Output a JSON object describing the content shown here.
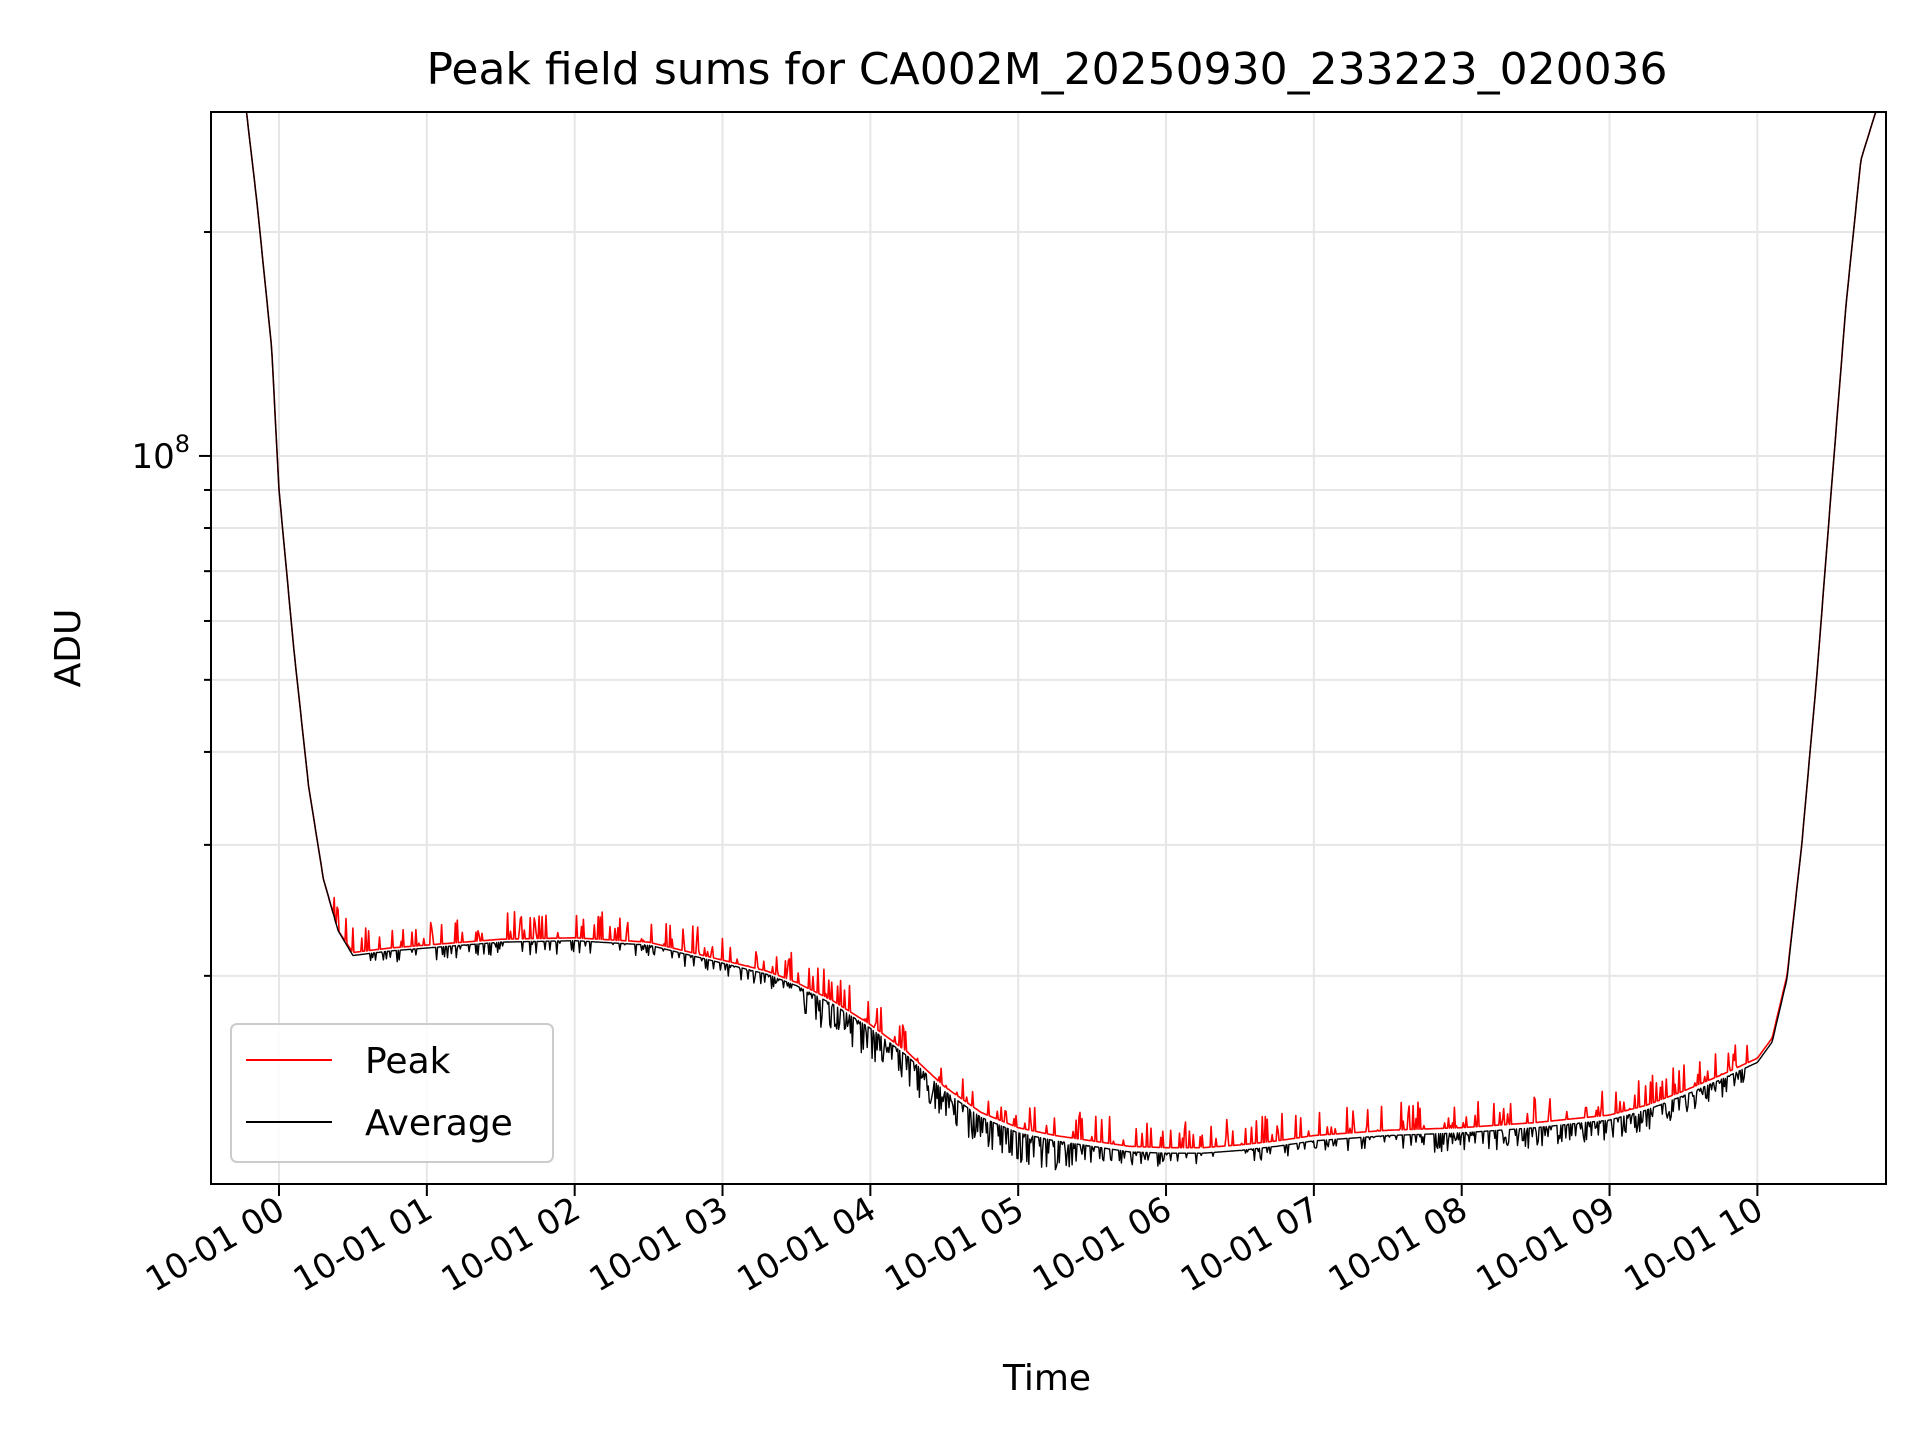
{
  "chart_data": {
    "type": "line",
    "title": "Peak field sums for CA002M_20250930_233223_020036",
    "xlabel": "Time",
    "ylabel": "ADU",
    "y_scale": "log",
    "ylim": [
      10500000,
      290000000
    ],
    "xlim_hours": [
      -0.46,
      10.87
    ],
    "x_tick_hours": [
      0,
      1,
      2,
      3,
      4,
      5,
      6,
      7,
      8,
      9,
      10
    ],
    "x_tick_labels": [
      "10-01 00",
      "10-01 01",
      "10-01 02",
      "10-01 03",
      "10-01 04",
      "10-01 05",
      "10-01 06",
      "10-01 07",
      "10-01 08",
      "10-01 09",
      "10-01 10"
    ],
    "y_tick_major": [
      100000000
    ],
    "y_tick_major_base": "10",
    "y_tick_major_exp": "8",
    "y_tick_minor": [
      20000000,
      30000000,
      40000000,
      50000000,
      60000000,
      70000000,
      80000000,
      90000000,
      200000000
    ],
    "grid": true,
    "legend_position": "lower-left",
    "colors": {
      "peak": "#ff0000",
      "average": "#000000",
      "grid": "#e6e6e6"
    },
    "series": [
      {
        "name": "Peak",
        "color": "#ff0000",
        "hours": [
          -0.46,
          -0.22,
          -0.15,
          -0.05,
          0.0,
          0.1,
          0.2,
          0.3,
          0.4,
          0.5,
          0.75,
          1.0,
          1.5,
          2.0,
          2.5,
          3.0,
          3.3,
          3.5,
          3.75,
          4.0,
          4.25,
          4.5,
          4.75,
          5.0,
          5.25,
          5.5,
          5.75,
          6.0,
          6.25,
          6.5,
          6.75,
          7.0,
          7.5,
          8.0,
          8.5,
          9.0,
          9.25,
          9.5,
          9.75,
          10.0,
          10.1,
          10.2,
          10.3,
          10.4,
          10.5,
          10.6,
          10.7,
          10.8,
          10.87
        ],
        "values": [
          290000000,
          290000000,
          220000000,
          140000000,
          90000000,
          55000000,
          36000000,
          27000000,
          23000000,
          21500000,
          21800000,
          22000000,
          22400000,
          22500000,
          22200000,
          21000000,
          20300000,
          19600000,
          18500000,
          17200000,
          15800000,
          14200000,
          13100000,
          12500000,
          12200000,
          12000000,
          11800000,
          11750000,
          11750000,
          11850000,
          12000000,
          12200000,
          12400000,
          12500000,
          12700000,
          13000000,
          13400000,
          14000000,
          14700000,
          15500000,
          16500000,
          20000000,
          30000000,
          50000000,
          90000000,
          160000000,
          250000000,
          290000000,
          290000000
        ]
      },
      {
        "name": "Average",
        "color": "#000000",
        "hours": [
          -0.46,
          -0.22,
          -0.15,
          -0.05,
          0.0,
          0.1,
          0.2,
          0.3,
          0.4,
          0.5,
          0.75,
          1.0,
          1.5,
          2.0,
          2.5,
          3.0,
          3.3,
          3.5,
          3.75,
          4.0,
          4.25,
          4.5,
          4.75,
          5.0,
          5.25,
          5.5,
          5.75,
          6.0,
          6.25,
          6.5,
          6.75,
          7.0,
          7.5,
          8.0,
          8.5,
          9.0,
          9.25,
          9.5,
          9.75,
          10.0,
          10.1,
          10.2,
          10.3,
          10.4,
          10.5,
          10.6,
          10.7,
          10.8,
          10.87
        ],
        "values": [
          290000000,
          290000000,
          220000000,
          140000000,
          90000000,
          55000000,
          36000000,
          27000000,
          23000000,
          21300000,
          21600000,
          21800000,
          22200000,
          22300000,
          22000000,
          20800000,
          20100000,
          19400000,
          18300000,
          17000000,
          15600000,
          14000000,
          12900000,
          12300000,
          12000000,
          11800000,
          11600000,
          11550000,
          11550000,
          11650000,
          11800000,
          12000000,
          12200000,
          12300000,
          12500000,
          12800000,
          13200000,
          13800000,
          14500000,
          15300000,
          16300000,
          19800000,
          30000000,
          50000000,
          90000000,
          160000000,
          250000000,
          290000000,
          290000000
        ]
      }
    ],
    "noise": {
      "peak_up_range_hours": [
        0.35,
        9.95
      ],
      "average_down_range_hours": [
        0.6,
        9.95
      ]
    }
  }
}
